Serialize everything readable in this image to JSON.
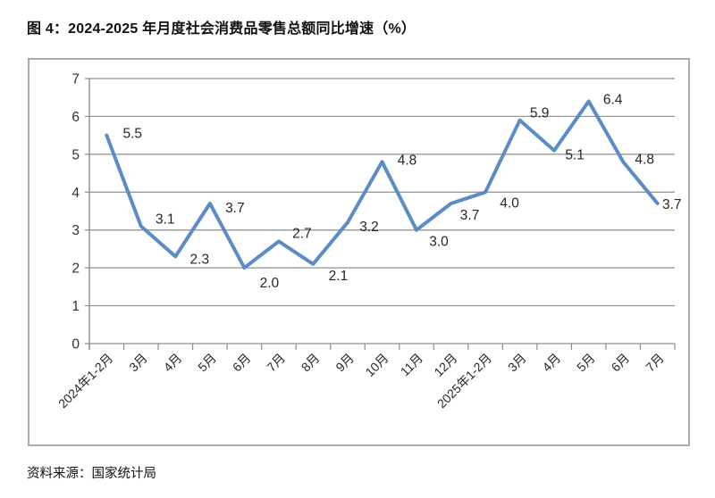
{
  "page": {
    "title": "图 4：2024-2025 年月度社会消费品零售总额同比增速（%）",
    "source": "资料来源：国家统计局"
  },
  "chart_data": {
    "type": "line",
    "title": "图 4：2024-2025 年月度社会消费品零售总额同比增速（%）",
    "categories": [
      "2024年1-2月",
      "3月",
      "4月",
      "5月",
      "6月",
      "7月",
      "8月",
      "9月",
      "10月",
      "11月",
      "12月",
      "2025年1-2月",
      "3月",
      "4月",
      "5月",
      "6月",
      "7月"
    ],
    "series": [
      {
        "name": "社会消费品零售总额同比增速",
        "values": [
          5.5,
          3.1,
          2.3,
          3.7,
          2.0,
          2.7,
          2.1,
          3.2,
          4.8,
          3.0,
          3.7,
          4.0,
          5.9,
          5.1,
          6.4,
          4.8,
          3.7
        ]
      }
    ],
    "data_labels": [
      "5.5",
      "3.1",
      "2.3",
      "3.7",
      "2.0",
      "2.7",
      "2.1",
      "3.2",
      "4.8",
      "3.0",
      "3.7",
      "4.0",
      "5.9",
      "5.1",
      "6.4",
      "4.8",
      "3.7"
    ],
    "xlabel": "",
    "ylabel": "",
    "ylim": [
      0,
      7
    ],
    "yticks": [
      0,
      1,
      2,
      3,
      4,
      5,
      6,
      7
    ],
    "grid": true,
    "legend_position": "none",
    "colors": {
      "line": "#5b8cc6",
      "gridline": "#8e8e8e",
      "axis": "#8e8e8e",
      "frame_border": "#ababab",
      "data_label_text": "#262626",
      "axis_tick_text": "#333333",
      "title_text": "#111111"
    }
  }
}
